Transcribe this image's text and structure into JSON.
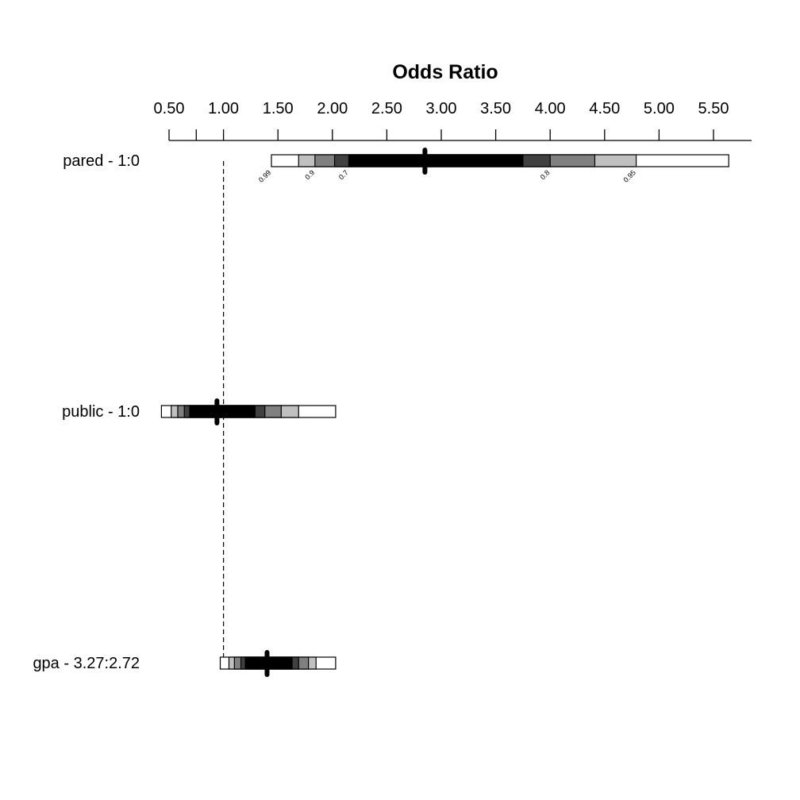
{
  "chart_data": {
    "type": "interval",
    "title": "Odds Ratio",
    "xlim": [
      0.5,
      5.85
    ],
    "x_ticks": [
      0.5,
      0.75,
      1.0,
      1.5,
      2.0,
      2.5,
      3.0,
      3.5,
      4.0,
      4.5,
      5.0,
      5.5
    ],
    "x_tick_labels": [
      "0.50",
      "",
      "1.00",
      "1.50",
      "2.00",
      "2.50",
      "3.00",
      "3.50",
      "4.00",
      "4.50",
      "5.00",
      "5.50"
    ],
    "reference_line": 1.0,
    "confidence_levels": [
      "0.99",
      "0.95",
      "0.9",
      "0.8",
      "0.7"
    ],
    "level_colors": [
      "#ffffff",
      "#c0c0c0",
      "#808080",
      "#404040",
      "#000000"
    ],
    "rows": [
      {
        "label": "pared - 1:0",
        "estimate": 2.85,
        "intervals": [
          [
            1.44,
            5.64
          ],
          [
            1.69,
            4.79
          ],
          [
            1.84,
            4.41
          ],
          [
            2.02,
            4.0
          ],
          [
            2.15,
            3.75
          ]
        ],
        "level_labels_shown": true
      },
      {
        "label": "public - 1:0",
        "estimate": 0.94,
        "intervals": [
          [
            0.43,
            2.03
          ],
          [
            0.52,
            1.69
          ],
          [
            0.58,
            1.53
          ],
          [
            0.64,
            1.38
          ],
          [
            0.69,
            1.29
          ]
        ],
        "level_labels_shown": false
      },
      {
        "label": "gpa - 3.27:2.72",
        "estimate": 1.4,
        "intervals": [
          [
            0.97,
            2.03
          ],
          [
            1.05,
            1.85
          ],
          [
            1.1,
            1.78
          ],
          [
            1.16,
            1.69
          ],
          [
            1.2,
            1.63
          ]
        ],
        "level_labels_shown": false
      }
    ]
  }
}
